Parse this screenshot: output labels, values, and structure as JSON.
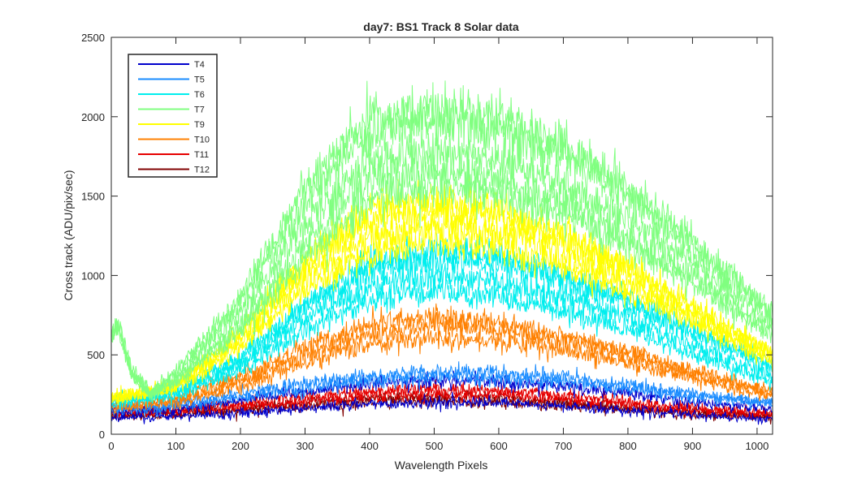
{
  "chart_data": {
    "type": "line",
    "title": "day7: BS1  Track 8 Solar data",
    "xlabel": "Wavelength Pixels",
    "ylabel": "Cross track (ADU/pix/sec)",
    "xlim": [
      0,
      1024
    ],
    "ylim": [
      0,
      2500
    ],
    "xticks": [
      0,
      100,
      200,
      300,
      400,
      500,
      600,
      700,
      800,
      900,
      1000
    ],
    "yticks": [
      0,
      500,
      1000,
      1500,
      2000,
      2500
    ],
    "grid": false,
    "legend_position": "top-left",
    "legend": [
      {
        "name": "T4",
        "color": "#0000cc"
      },
      {
        "name": "T5",
        "color": "#1a8cff"
      },
      {
        "name": "T6",
        "color": "#00eeee"
      },
      {
        "name": "T7",
        "color": "#80ff80"
      },
      {
        "name": "T9",
        "color": "#ffff00"
      },
      {
        "name": "T10",
        "color": "#ff8000"
      },
      {
        "name": "T11",
        "color": "#e60000"
      },
      {
        "name": "T12",
        "color": "#800000"
      }
    ],
    "series": [
      {
        "name": "T12",
        "color": "#800000",
        "profiles": [
          {
            "x": [
              0,
              100,
              200,
              300,
              400,
              500,
              600,
              700,
              800,
              900,
              1024
            ],
            "y": [
              110,
              125,
              150,
              175,
              200,
              210,
              200,
              180,
              155,
              125,
              105
            ]
          },
          {
            "x": [
              0,
              100,
              200,
              300,
              400,
              500,
              600,
              700,
              800,
              900,
              1024
            ],
            "y": [
              120,
              140,
              165,
              195,
              225,
              235,
              225,
              200,
              170,
              140,
              115
            ]
          }
        ]
      },
      {
        "name": "T11",
        "color": "#e60000",
        "profiles": [
          {
            "x": [
              0,
              100,
              200,
              300,
              400,
              500,
              600,
              700,
              800,
              900,
              1024
            ],
            "y": [
              125,
              145,
              175,
              210,
              240,
              255,
              245,
              220,
              185,
              150,
              125
            ]
          },
          {
            "x": [
              0,
              100,
              200,
              300,
              400,
              500,
              600,
              700,
              800,
              900,
              1024
            ],
            "y": [
              140,
              160,
              195,
              235,
              270,
              285,
              275,
              245,
              205,
              165,
              135
            ]
          }
        ]
      },
      {
        "name": "T4",
        "color": "#0000cc",
        "profiles": [
          {
            "x": [
              0,
              100,
              200,
              300,
              400,
              500,
              600,
              700,
              800,
              900,
              1024
            ],
            "y": [
              100,
              110,
              135,
              165,
              190,
              200,
              195,
              175,
              150,
              120,
              95
            ]
          },
          {
            "x": [
              0,
              100,
              200,
              300,
              400,
              500,
              600,
              700,
              800,
              900,
              1024
            ],
            "y": [
              130,
              160,
              210,
              270,
              320,
              340,
              330,
              300,
              255,
              200,
              160
            ]
          }
        ]
      },
      {
        "name": "T5",
        "color": "#1a8cff",
        "profiles": [
          {
            "x": [
              0,
              100,
              200,
              300,
              400,
              500,
              600,
              700,
              800,
              900,
              1024
            ],
            "y": [
              150,
              175,
              230,
              290,
              340,
              360,
              355,
              330,
              290,
              240,
              190
            ]
          },
          {
            "x": [
              0,
              100,
              200,
              300,
              400,
              500,
              600,
              700,
              800,
              900,
              1024
            ],
            "y": [
              165,
              195,
              255,
              320,
              370,
              390,
              385,
              355,
              310,
              255,
              200
            ]
          }
        ]
      },
      {
        "name": "T10",
        "color": "#ff8000",
        "profiles": [
          {
            "x": [
              0,
              100,
              200,
              300,
              400,
              500,
              600,
              700,
              800,
              900,
              1024
            ],
            "y": [
              170,
              200,
              300,
              450,
              570,
              610,
              590,
              530,
              450,
              350,
              230
            ]
          },
          {
            "x": [
              0,
              100,
              200,
              300,
              400,
              500,
              600,
              700,
              800,
              900,
              1024
            ],
            "y": [
              180,
              215,
              330,
              500,
              640,
              690,
              660,
              590,
              500,
              390,
              260
            ]
          },
          {
            "x": [
              0,
              100,
              200,
              300,
              400,
              500,
              600,
              700,
              800,
              900,
              1024
            ],
            "y": [
              190,
              230,
              360,
              550,
              700,
              740,
              700,
              620,
              520,
              400,
              270
            ]
          }
        ]
      },
      {
        "name": "T6",
        "color": "#00eeee",
        "profiles": [
          {
            "x": [
              0,
              100,
              200,
              300,
              400,
              500,
              600,
              700,
              800,
              900,
              1024
            ],
            "y": [
              190,
              240,
              400,
              650,
              840,
              900,
              870,
              780,
              660,
              500,
              330
            ]
          },
          {
            "x": [
              0,
              100,
              200,
              300,
              400,
              500,
              600,
              700,
              800,
              900,
              1024
            ],
            "y": [
              200,
              255,
              440,
              720,
              940,
              1000,
              960,
              860,
              730,
              550,
              370
            ]
          },
          {
            "x": [
              0,
              100,
              200,
              300,
              400,
              500,
              600,
              700,
              800,
              900,
              1024
            ],
            "y": [
              210,
              270,
              470,
              790,
              1030,
              1110,
              1080,
              970,
              820,
              640,
              420
            ]
          },
          {
            "x": [
              0,
              100,
              200,
              300,
              400,
              500,
              600,
              700,
              800,
              900,
              1024
            ],
            "y": [
              215,
              280,
              490,
              830,
              1090,
              1160,
              1120,
              1000,
              850,
              660,
              440
            ]
          }
        ]
      },
      {
        "name": "T9",
        "color": "#ffff00",
        "profiles": [
          {
            "x": [
              0,
              100,
              200,
              300,
              400,
              500,
              600,
              700,
              800,
              900,
              1024
            ],
            "y": [
              210,
              290,
              550,
              910,
              1150,
              1210,
              1170,
              1050,
              900,
              700,
              450
            ]
          },
          {
            "x": [
              0,
              100,
              200,
              300,
              400,
              500,
              600,
              700,
              800,
              900,
              1024
            ],
            "y": [
              220,
              300,
              580,
              990,
              1250,
              1310,
              1270,
              1140,
              960,
              740,
              480
            ]
          },
          {
            "x": [
              0,
              100,
              200,
              300,
              400,
              500,
              600,
              700,
              800,
              900,
              1024
            ],
            "y": [
              225,
              310,
              610,
              1060,
              1360,
              1420,
              1370,
              1220,
              1030,
              790,
              500
            ]
          },
          {
            "x": [
              0,
              100,
              200,
              300,
              400,
              500,
              600,
              700,
              800,
              900,
              1024
            ],
            "y": [
              230,
              320,
              640,
              1110,
              1420,
              1480,
              1420,
              1260,
              1060,
              810,
              520
            ]
          }
        ]
      },
      {
        "name": "T7",
        "color": "#80ff80",
        "profiles": [
          {
            "x": [
              0,
              10,
              30,
              60,
              100,
              200,
              300,
              400,
              500,
              600,
              700,
              800,
              900,
              1024
            ],
            "y": [
              640,
              720,
              420,
              260,
              330,
              660,
              1120,
              1480,
              1560,
              1520,
              1380,
              1180,
              950,
              620
            ]
          },
          {
            "x": [
              0,
              10,
              30,
              60,
              100,
              200,
              300,
              400,
              500,
              600,
              700,
              800,
              900,
              1024
            ],
            "y": [
              620,
              700,
              400,
              250,
              340,
              690,
              1200,
              1580,
              1660,
              1610,
              1460,
              1240,
              990,
              650
            ]
          },
          {
            "x": [
              0,
              10,
              30,
              60,
              100,
              200,
              300,
              400,
              500,
              600,
              700,
              800,
              900,
              1024
            ],
            "y": [
              600,
              680,
              390,
              245,
              360,
              760,
              1330,
              1720,
              1780,
              1730,
              1570,
              1350,
              1080,
              700
            ]
          },
          {
            "x": [
              0,
              10,
              30,
              60,
              100,
              200,
              300,
              400,
              500,
              600,
              700,
              800,
              900,
              1024
            ],
            "y": [
              610,
              690,
              395,
              250,
              380,
              820,
              1480,
              1900,
              1990,
              1940,
              1760,
              1500,
              1180,
              750
            ]
          },
          {
            "x": [
              0,
              10,
              30,
              60,
              100,
              200,
              300,
              400,
              500,
              600,
              700,
              800,
              900,
              1024
            ],
            "y": [
              615,
              700,
              400,
              255,
              395,
              860,
              1560,
              1980,
              2050,
              2000,
              1810,
              1540,
              1210,
              770
            ]
          }
        ]
      }
    ]
  }
}
